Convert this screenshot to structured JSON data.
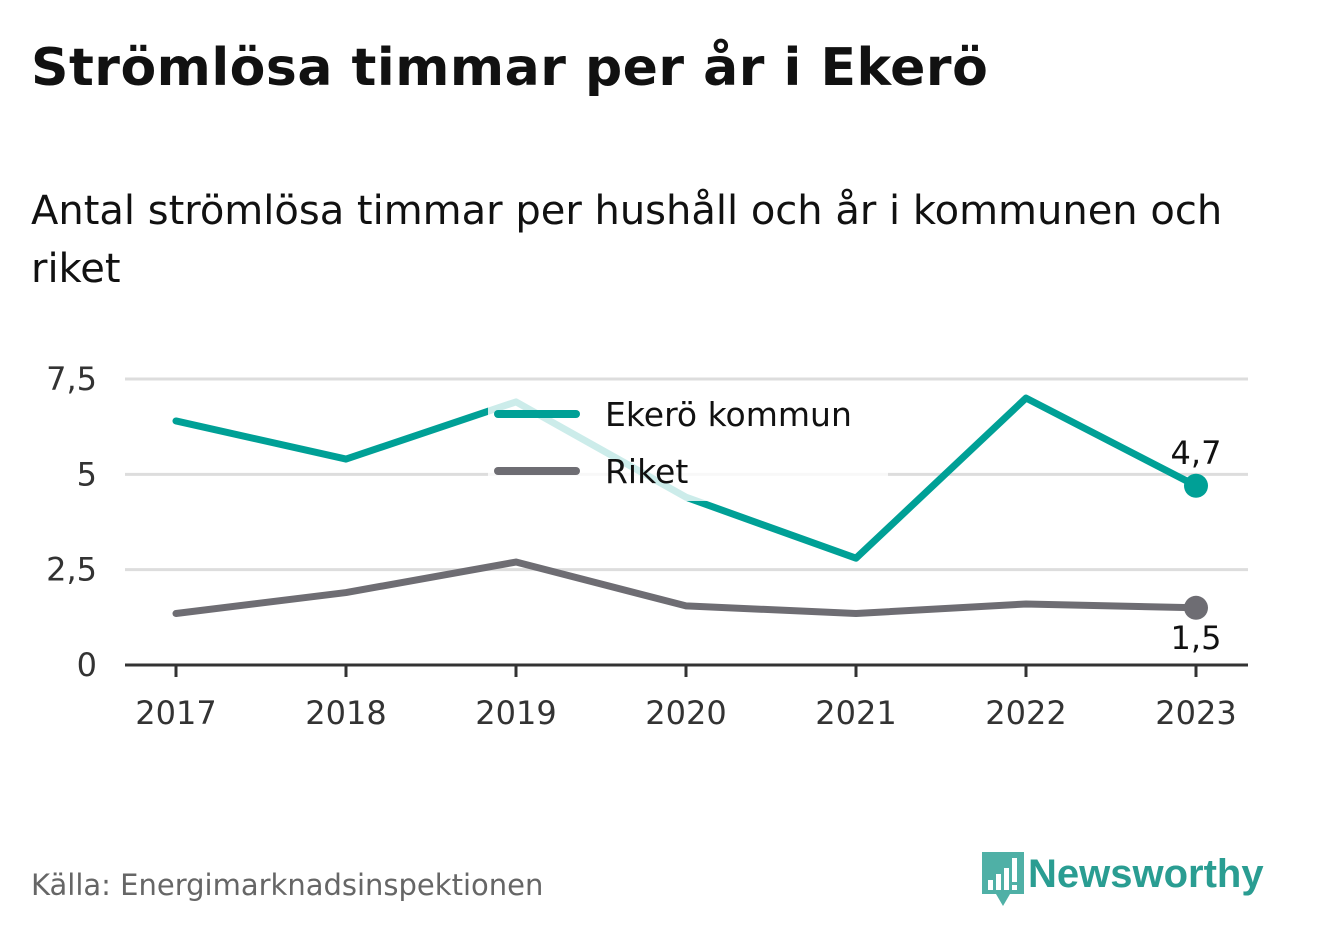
{
  "title": "Strömlösa timmar per år i Ekerö",
  "subtitle": "Antal strömlösa timmar per hushåll och år i kommunen och riket",
  "source": "Källa: Energimarknadsinspektionen",
  "brand": {
    "name": "Newsworthy",
    "color": "#2a9d92",
    "icon": "newsworthy-bar-chart-icon"
  },
  "chart_data": {
    "type": "line",
    "x": [
      "2017",
      "2018",
      "2019",
      "2020",
      "2021",
      "2022",
      "2023"
    ],
    "y_ticks": [
      {
        "value": 0,
        "label": "0"
      },
      {
        "value": 2.5,
        "label": "2,5"
      },
      {
        "value": 5,
        "label": "5"
      },
      {
        "value": 7.5,
        "label": "7,5"
      }
    ],
    "ylim": [
      0,
      7.5
    ],
    "grid": true,
    "legend_position": "top-center",
    "series": [
      {
        "name": "Ekerö kommun",
        "color": "#00a096",
        "values": [
          6.4,
          5.4,
          6.9,
          4.4,
          2.8,
          7.0,
          4.7
        ],
        "end_label": "4,7"
      },
      {
        "name": "Riket",
        "color": "#6e6d73",
        "values": [
          1.35,
          1.9,
          2.7,
          1.55,
          1.35,
          1.6,
          1.5
        ],
        "end_label": "1,5"
      }
    ]
  }
}
